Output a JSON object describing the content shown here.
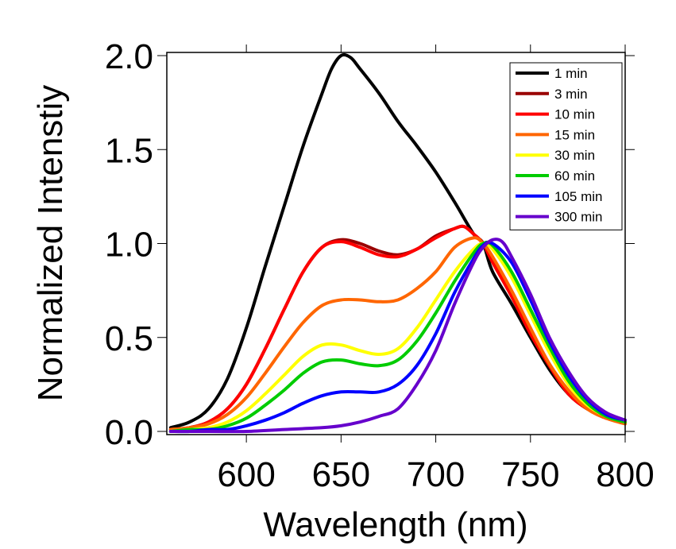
{
  "chart_data": {
    "type": "line",
    "title": "",
    "xlabel": "Wavelength (nm)",
    "ylabel": "Normalized Intenstiy",
    "xlim": [
      558,
      800
    ],
    "ylim": [
      0.0,
      2.0
    ],
    "xticks": [
      600,
      650,
      700,
      750,
      800
    ],
    "xtick_labels": [
      "600",
      "650",
      "700",
      "750",
      "800"
    ],
    "yticks": [
      0.0,
      0.5,
      1.0,
      1.5,
      2.0
    ],
    "ytick_labels": [
      "0.0",
      "0.5",
      "1.0",
      "1.5",
      "2.0"
    ],
    "grid": false,
    "mirror_ticks": true,
    "legend_position": "top-right",
    "series": [
      {
        "name": "1 min",
        "color": "#000000",
        "x": [
          560,
          570,
          580,
          590,
          600,
          610,
          620,
          630,
          640,
          645,
          650,
          655,
          660,
          670,
          680,
          690,
          700,
          710,
          720,
          725,
          730,
          740,
          750,
          760,
          770,
          780,
          790,
          800
        ],
        "y": [
          0.02,
          0.05,
          0.12,
          0.28,
          0.55,
          0.88,
          1.2,
          1.52,
          1.8,
          1.93,
          2.0,
          1.99,
          1.93,
          1.8,
          1.65,
          1.52,
          1.38,
          1.22,
          1.05,
          1.0,
          0.85,
          0.68,
          0.5,
          0.33,
          0.2,
          0.12,
          0.08,
          0.05
        ]
      },
      {
        "name": "3 min",
        "color": "#990000",
        "x": [
          560,
          570,
          580,
          590,
          600,
          610,
          620,
          630,
          640,
          650,
          660,
          670,
          680,
          690,
          700,
          710,
          715,
          720,
          725,
          730,
          740,
          750,
          760,
          770,
          780,
          790,
          800
        ],
        "y": [
          0.01,
          0.02,
          0.05,
          0.12,
          0.25,
          0.44,
          0.65,
          0.85,
          0.98,
          1.02,
          1.0,
          0.96,
          0.94,
          0.97,
          1.04,
          1.08,
          1.09,
          1.05,
          1.0,
          0.9,
          0.72,
          0.52,
          0.35,
          0.2,
          0.12,
          0.07,
          0.05
        ]
      },
      {
        "name": "10 min",
        "color": "#ff0000",
        "x": [
          560,
          570,
          580,
          590,
          600,
          610,
          620,
          630,
          640,
          650,
          660,
          670,
          680,
          690,
          700,
          710,
          715,
          720,
          725,
          730,
          740,
          750,
          760,
          770,
          780,
          790,
          800
        ],
        "y": [
          0.01,
          0.02,
          0.05,
          0.12,
          0.25,
          0.44,
          0.65,
          0.85,
          0.98,
          1.01,
          0.98,
          0.94,
          0.93,
          0.97,
          1.03,
          1.08,
          1.09,
          1.05,
          1.0,
          0.9,
          0.72,
          0.52,
          0.35,
          0.2,
          0.12,
          0.07,
          0.05
        ]
      },
      {
        "name": "15 min",
        "color": "#ff6600",
        "x": [
          560,
          570,
          580,
          590,
          600,
          610,
          620,
          630,
          640,
          650,
          660,
          670,
          680,
          690,
          700,
          710,
          720,
          725,
          730,
          740,
          750,
          760,
          770,
          780,
          790,
          800
        ],
        "y": [
          0.01,
          0.02,
          0.04,
          0.09,
          0.18,
          0.31,
          0.45,
          0.58,
          0.67,
          0.7,
          0.7,
          0.69,
          0.7,
          0.76,
          0.85,
          0.98,
          1.03,
          1.0,
          0.93,
          0.75,
          0.55,
          0.36,
          0.22,
          0.12,
          0.07,
          0.04
        ]
      },
      {
        "name": "30 min",
        "color": "#ffff00",
        "x": [
          560,
          570,
          580,
          590,
          600,
          610,
          620,
          630,
          640,
          650,
          660,
          670,
          680,
          690,
          700,
          710,
          720,
          725,
          730,
          740,
          750,
          760,
          770,
          780,
          790,
          800
        ],
        "y": [
          0.0,
          0.01,
          0.02,
          0.05,
          0.11,
          0.2,
          0.3,
          0.4,
          0.46,
          0.46,
          0.43,
          0.41,
          0.44,
          0.55,
          0.7,
          0.85,
          0.97,
          1.0,
          0.97,
          0.82,
          0.62,
          0.42,
          0.25,
          0.14,
          0.08,
          0.05
        ]
      },
      {
        "name": "60 min",
        "color": "#00cc00",
        "x": [
          560,
          570,
          580,
          590,
          600,
          610,
          620,
          630,
          640,
          650,
          660,
          670,
          680,
          690,
          700,
          710,
          720,
          725,
          730,
          740,
          750,
          760,
          770,
          780,
          790,
          800
        ],
        "y": [
          0.0,
          0.01,
          0.01,
          0.03,
          0.07,
          0.14,
          0.22,
          0.31,
          0.37,
          0.38,
          0.36,
          0.35,
          0.38,
          0.48,
          0.63,
          0.8,
          0.95,
          1.0,
          0.99,
          0.85,
          0.65,
          0.45,
          0.27,
          0.15,
          0.08,
          0.05
        ]
      },
      {
        "name": "105 min",
        "color": "#0000ff",
        "x": [
          560,
          570,
          580,
          590,
          600,
          610,
          620,
          630,
          640,
          650,
          660,
          670,
          680,
          690,
          700,
          710,
          720,
          725,
          730,
          740,
          750,
          760,
          770,
          780,
          790,
          800
        ],
        "y": [
          0.0,
          0.0,
          0.01,
          0.01,
          0.03,
          0.06,
          0.1,
          0.15,
          0.19,
          0.21,
          0.21,
          0.21,
          0.25,
          0.35,
          0.52,
          0.74,
          0.92,
          0.99,
          1.0,
          0.9,
          0.7,
          0.48,
          0.3,
          0.17,
          0.09,
          0.06
        ]
      },
      {
        "name": "300 min",
        "color": "#6600cc",
        "x": [
          560,
          580,
          600,
          620,
          640,
          650,
          660,
          670,
          680,
          690,
          700,
          710,
          720,
          725,
          730,
          735,
          740,
          750,
          760,
          770,
          780,
          790,
          800
        ],
        "y": [
          0.0,
          0.0,
          0.0,
          0.01,
          0.02,
          0.03,
          0.05,
          0.08,
          0.12,
          0.25,
          0.43,
          0.68,
          0.9,
          0.98,
          1.02,
          1.01,
          0.93,
          0.73,
          0.5,
          0.32,
          0.18,
          0.1,
          0.06
        ]
      }
    ]
  }
}
